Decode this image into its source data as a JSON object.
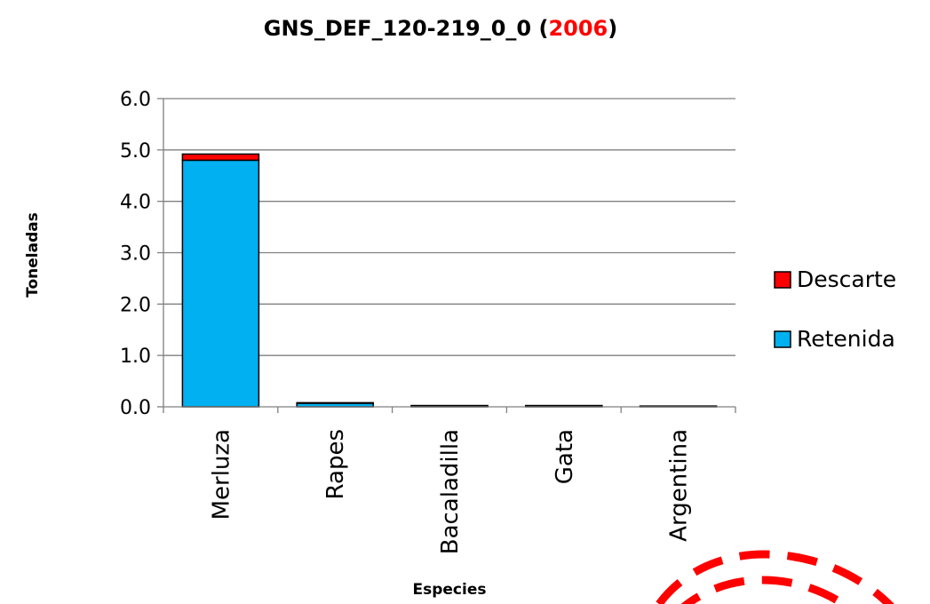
{
  "chart_data": {
    "type": "bar",
    "stacked": true,
    "title_main": "GNS_DEF_120-219_0_0 (",
    "title_year": "2006",
    "title_close": ")",
    "xlabel": "Especies",
    "ylabel": "Toneladas",
    "ylim": [
      0,
      6
    ],
    "yticks": [
      "0.0",
      "1.0",
      "2.0",
      "3.0",
      "4.0",
      "5.0",
      "6.0"
    ],
    "grid": true,
    "legend_position": "right",
    "categories": [
      "Merluza",
      "Rapes",
      "Bacaladilla",
      "Gata",
      "Argentina"
    ],
    "series": [
      {
        "name": "Retenida",
        "color": "#00B0F0",
        "values": [
          4.8,
          0.07,
          0.02,
          0.02,
          0.01
        ]
      },
      {
        "name": "Descarte",
        "color": "#FF0000",
        "values": [
          0.12,
          0.01,
          0.005,
          0.005,
          0.005
        ]
      }
    ],
    "year_color": "#FF0000",
    "grid_color": "#808080"
  }
}
